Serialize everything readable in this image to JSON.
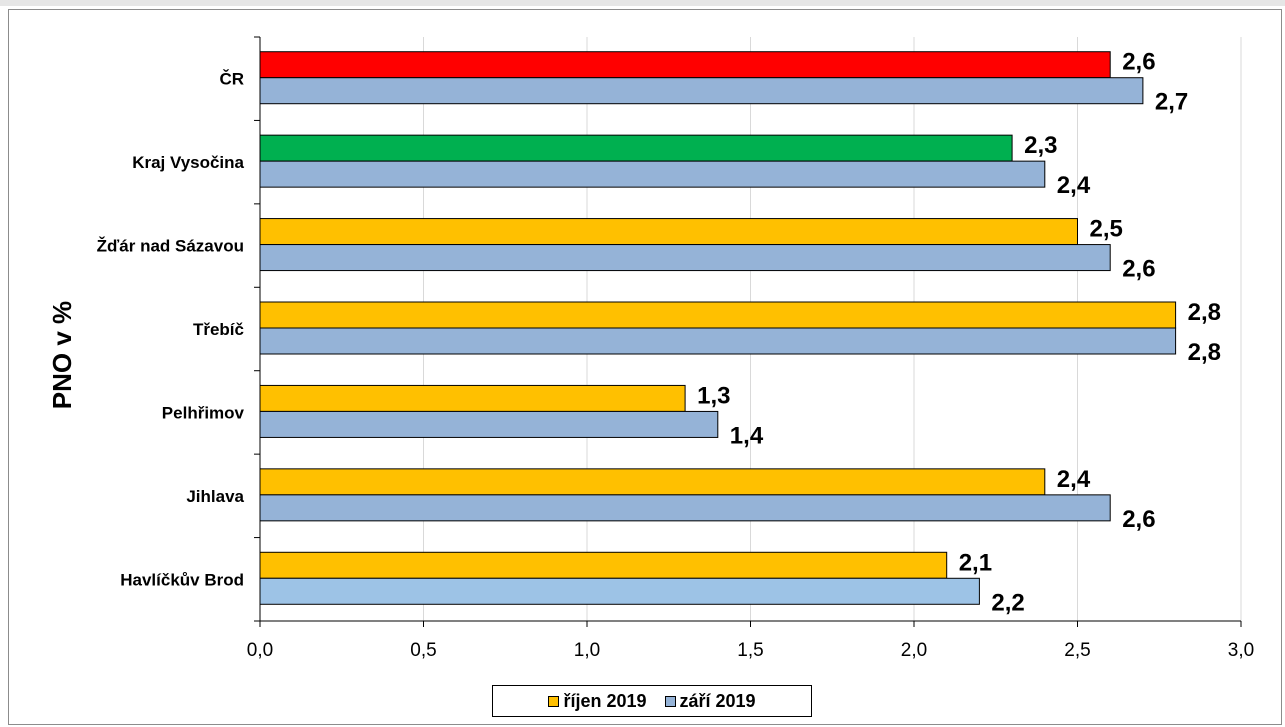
{
  "chart_data": {
    "type": "bar",
    "orientation": "horizontal",
    "ylabel": "PNO v %",
    "xlim": [
      0,
      3.0
    ],
    "x_ticks": [
      "0,0",
      "0,5",
      "1,0",
      "1,5",
      "2,0",
      "2,5",
      "3,0"
    ],
    "grid": "vertical",
    "legend_position": "bottom",
    "categories": [
      "ČR",
      "Kraj Vysočina",
      "Žďár nad Sázavou",
      "Třebíč",
      "Pelhřimov",
      "Jihlava",
      "Havlíčkův Brod"
    ],
    "series": [
      {
        "name": "říjen 2019",
        "color": "#ffc000",
        "values": [
          2.6,
          2.3,
          2.5,
          2.8,
          1.3,
          2.4,
          2.1
        ],
        "labels": [
          "2,6",
          "2,3",
          "2,5",
          "2,8",
          "1,3",
          "2,4",
          "2,1"
        ],
        "point_colors": [
          "#ff0000",
          "#00b050",
          "#ffc000",
          "#ffc000",
          "#ffc000",
          "#ffc000",
          "#ffc000"
        ]
      },
      {
        "name": "září 2019",
        "color": "#95b3d7",
        "values": [
          2.7,
          2.4,
          2.6,
          2.8,
          1.4,
          2.6,
          2.2
        ],
        "labels": [
          "2,7",
          "2,4",
          "2,6",
          "2,8",
          "1,4",
          "2,6",
          "2,2"
        ],
        "point_colors": [
          "#95b3d7",
          "#95b3d7",
          "#95b3d7",
          "#95b3d7",
          "#95b3d7",
          "#95b3d7",
          "#9dc3e6"
        ]
      }
    ]
  }
}
